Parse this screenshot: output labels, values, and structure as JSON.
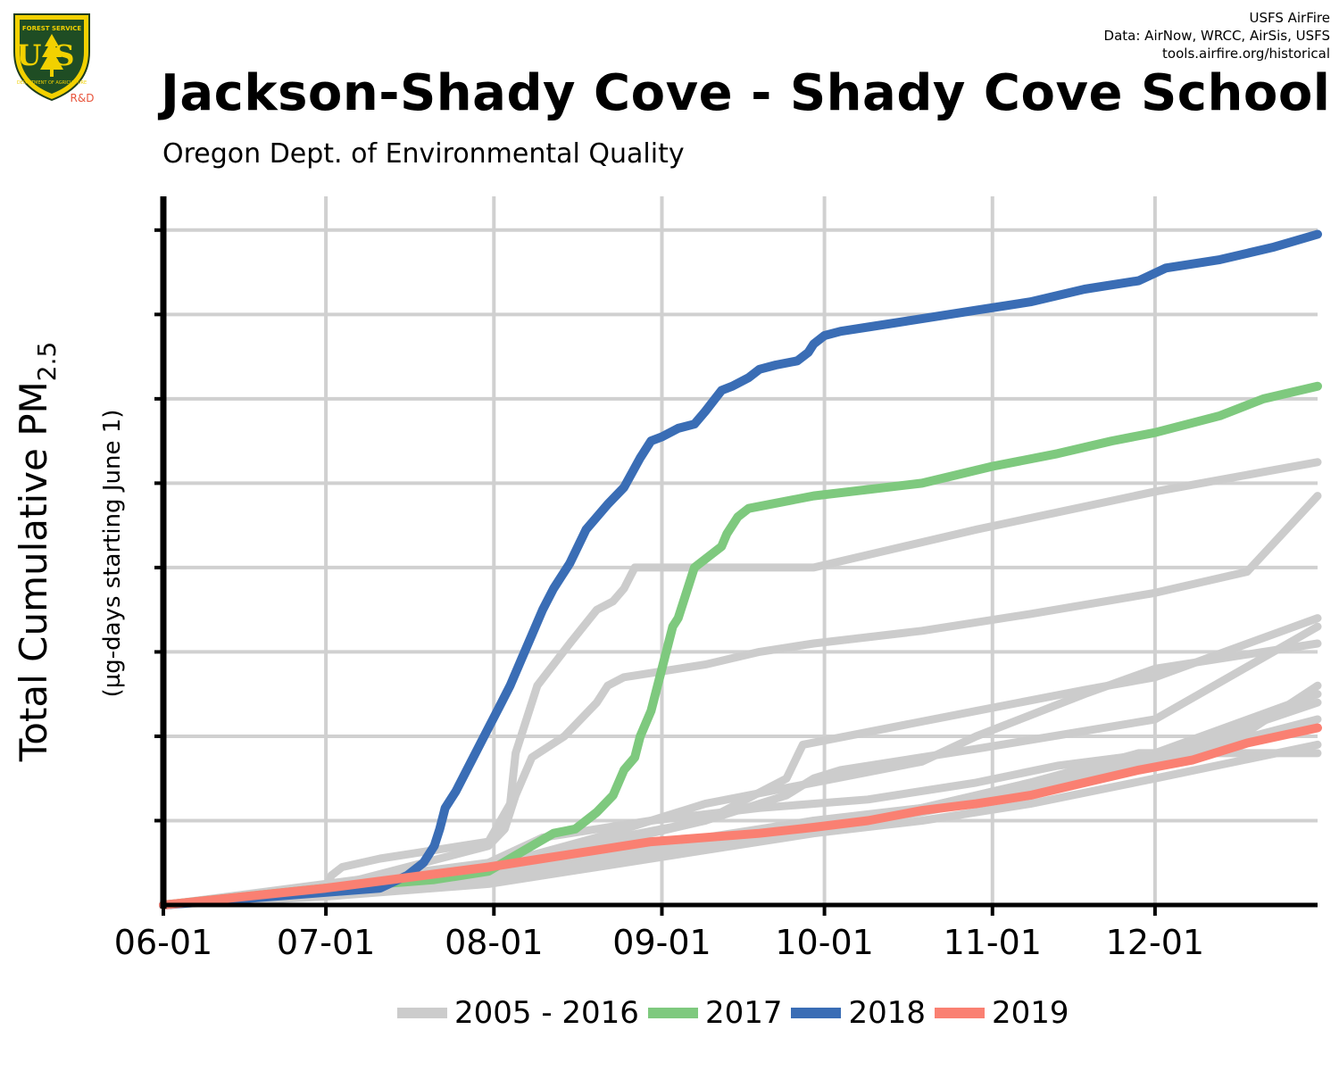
{
  "header": {
    "logo_text": "FOREST SERVICE",
    "logo_letters": "US",
    "logo_sub": "DEPARTMENT OF AGRICULTURE",
    "logo_rd": "R&D",
    "credit_1": "USFS AirFire",
    "credit_2": "Data: AirNow, WRCC, AirSis, USFS",
    "credit_3": "tools.airfire.org/historical",
    "title": "Jackson-Shady Cove - Shady Cove School",
    "subtitle": "Oregon Dept. of Environmental Quality"
  },
  "colors": {
    "historic": "#cccccc",
    "y2017": "#7ec97e",
    "y2018": "#3a6db5",
    "y2019": "#fa8072",
    "grid": "#d0d0d0",
    "axis": "#000000"
  },
  "chart_data": {
    "type": "line",
    "ylabel": "Total Cumulative PM",
    "ylabel_sub": "2.5",
    "ylabel_units": "(µg-days starting June 1)",
    "x_tick_labels": [
      "06-01",
      "07-01",
      "08-01",
      "09-01",
      "10-01",
      "11-01",
      "12-01"
    ],
    "x_tick_days": [
      0,
      30,
      61,
      92,
      122,
      153,
      183
    ],
    "xlim_days": [
      0,
      213
    ],
    "ylim": [
      0,
      8.4
    ],
    "y_gridlines": [
      1,
      2,
      3,
      4,
      5,
      6,
      7,
      8
    ],
    "y_tick_labels_shown": false,
    "legend": [
      "2005 - 2016",
      "2017",
      "2018",
      "2019"
    ],
    "series": [
      {
        "name": "2005 - 2016",
        "group": "historic",
        "x": [
          0,
          30,
          31,
          33,
          40,
          50,
          60,
          64,
          65,
          69,
          75,
          80,
          83,
          85,
          87,
          90,
          120,
          150,
          183,
          213
        ],
        "y": [
          0,
          0.2,
          0.35,
          0.45,
          0.55,
          0.65,
          0.75,
          1.2,
          1.8,
          2.6,
          3.1,
          3.5,
          3.6,
          3.75,
          4.0,
          4.0,
          4.0,
          4.45,
          4.9,
          5.25
        ]
      },
      {
        "name": "2005 - 2016",
        "group": "historic",
        "x": [
          0,
          30,
          60,
          63,
          65,
          68,
          74,
          80,
          82,
          85,
          100,
          110,
          120,
          140,
          160,
          183,
          200,
          213
        ],
        "y": [
          0,
          0.2,
          0.7,
          0.9,
          1.3,
          1.75,
          2.0,
          2.4,
          2.6,
          2.7,
          2.85,
          3.0,
          3.1,
          3.25,
          3.45,
          3.7,
          3.95,
          4.85
        ]
      },
      {
        "name": "2005 - 2016",
        "group": "historic",
        "x": [
          0,
          30,
          60,
          70,
          90,
          110,
          130,
          150,
          165,
          183,
          200,
          213
        ],
        "y": [
          0,
          0.25,
          0.5,
          0.8,
          1.0,
          1.15,
          1.25,
          1.45,
          1.65,
          1.8,
          2.05,
          2.6
        ]
      },
      {
        "name": "2005 - 2016",
        "group": "historic",
        "x": [
          0,
          30,
          60,
          80,
          100,
          115,
          120,
          125,
          150,
          183,
          213
        ],
        "y": [
          0,
          0.18,
          0.4,
          0.7,
          1.0,
          1.3,
          1.5,
          1.6,
          1.85,
          2.2,
          3.3
        ]
      },
      {
        "name": "2005 - 2016",
        "group": "historic",
        "x": [
          0,
          30,
          60,
          80,
          100,
          115,
          118,
          122,
          150,
          170,
          183,
          213
        ],
        "y": [
          0,
          0.15,
          0.45,
          0.75,
          1.0,
          1.5,
          1.9,
          1.95,
          2.3,
          2.55,
          2.7,
          3.4
        ]
      },
      {
        "name": "2005 - 2016",
        "group": "historic",
        "x": [
          0,
          30,
          60,
          80,
          100,
          120,
          140,
          150,
          170,
          183,
          213
        ],
        "y": [
          0,
          0.2,
          0.45,
          0.8,
          1.2,
          1.45,
          1.7,
          2.0,
          2.5,
          2.8,
          3.1
        ]
      },
      {
        "name": "2005 - 2016",
        "group": "historic",
        "x": [
          0,
          30,
          60,
          80,
          100,
          120,
          140,
          160,
          183,
          213
        ],
        "y": [
          0,
          0.15,
          0.35,
          0.6,
          0.8,
          1.0,
          1.15,
          1.4,
          1.8,
          2.5
        ]
      },
      {
        "name": "2005 - 2016",
        "group": "historic",
        "x": [
          0,
          30,
          60,
          80,
          100,
          120,
          140,
          160,
          183,
          213
        ],
        "y": [
          0,
          0.15,
          0.35,
          0.55,
          0.75,
          0.95,
          1.15,
          1.45,
          1.75,
          2.4
        ]
      },
      {
        "name": "2005 - 2016",
        "group": "historic",
        "x": [
          0,
          30,
          60,
          80,
          100,
          120,
          140,
          160,
          183,
          213
        ],
        "y": [
          0,
          0.12,
          0.3,
          0.5,
          0.7,
          0.9,
          1.1,
          1.35,
          1.7,
          2.2
        ]
      },
      {
        "name": "2005 - 2016",
        "group": "historic",
        "x": [
          0,
          30,
          60,
          80,
          100,
          120,
          140,
          160,
          180,
          213
        ],
        "y": [
          0,
          0.12,
          0.3,
          0.5,
          0.7,
          0.9,
          1.15,
          1.45,
          1.8,
          1.8
        ]
      },
      {
        "name": "2005 - 2016",
        "group": "historic",
        "x": [
          0,
          30,
          60,
          80,
          100,
          120,
          140,
          160,
          183,
          213
        ],
        "y": [
          0,
          0.1,
          0.25,
          0.45,
          0.65,
          0.85,
          1.0,
          1.2,
          1.5,
          1.9
        ]
      },
      {
        "name": "2017",
        "group": "y2017",
        "x": [
          0,
          30,
          50,
          60,
          64,
          68,
          72,
          76,
          80,
          83,
          85,
          87,
          88,
          90,
          92,
          94,
          95,
          98,
          103,
          104,
          106,
          108,
          120,
          140,
          153,
          165,
          175,
          183,
          195,
          203,
          213
        ],
        "y": [
          0,
          0.2,
          0.3,
          0.4,
          0.55,
          0.7,
          0.85,
          0.9,
          1.1,
          1.3,
          1.6,
          1.75,
          2.0,
          2.3,
          2.8,
          3.3,
          3.4,
          4.0,
          4.25,
          4.4,
          4.6,
          4.7,
          4.85,
          5.0,
          5.2,
          5.35,
          5.5,
          5.6,
          5.8,
          6.0,
          6.15
        ]
      },
      {
        "name": "2018",
        "group": "y2018",
        "x": [
          0,
          20,
          40,
          45,
          48,
          50,
          51,
          52,
          54,
          56,
          58,
          60,
          62,
          64,
          66,
          68,
          70,
          72,
          75,
          78,
          80,
          82,
          85,
          88,
          90,
          92,
          95,
          98,
          100,
          103,
          105,
          108,
          110,
          113,
          117,
          119,
          120,
          122,
          125,
          130,
          140,
          150,
          160,
          170,
          180,
          185,
          195,
          205,
          213
        ],
        "y": [
          0,
          0.1,
          0.2,
          0.35,
          0.5,
          0.7,
          0.9,
          1.15,
          1.35,
          1.6,
          1.85,
          2.1,
          2.35,
          2.6,
          2.9,
          3.2,
          3.5,
          3.75,
          4.05,
          4.45,
          4.6,
          4.75,
          4.95,
          5.3,
          5.5,
          5.55,
          5.65,
          5.7,
          5.85,
          6.1,
          6.15,
          6.25,
          6.35,
          6.4,
          6.45,
          6.55,
          6.65,
          6.75,
          6.8,
          6.85,
          6.95,
          7.05,
          7.15,
          7.3,
          7.4,
          7.55,
          7.65,
          7.8,
          7.95
        ]
      },
      {
        "name": "2019",
        "group": "y2019",
        "x": [
          0,
          30,
          60,
          70,
          80,
          90,
          100,
          110,
          120,
          130,
          140,
          150,
          160,
          170,
          180,
          190,
          200,
          213
        ],
        "y": [
          0,
          0.2,
          0.45,
          0.55,
          0.65,
          0.75,
          0.8,
          0.85,
          0.92,
          1.0,
          1.12,
          1.2,
          1.3,
          1.45,
          1.6,
          1.72,
          1.92,
          2.1
        ]
      }
    ]
  }
}
